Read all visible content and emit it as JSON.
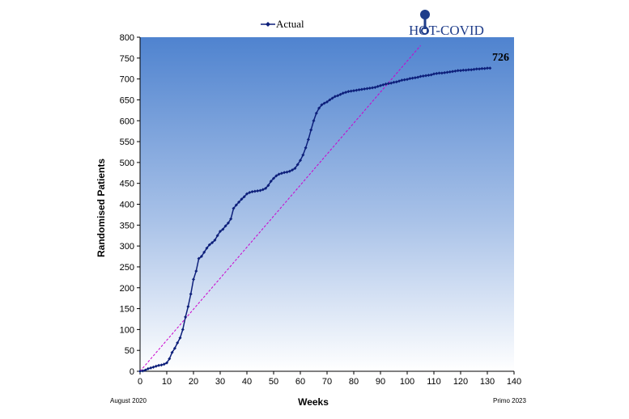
{
  "chart_data": {
    "type": "line",
    "title": "",
    "xlabel": "Weeks",
    "ylabel": "Randomised Patients",
    "xlim": [
      0,
      140
    ],
    "ylim": [
      0,
      800
    ],
    "x_ticks": [
      0,
      10,
      20,
      30,
      40,
      50,
      60,
      70,
      80,
      90,
      100,
      110,
      120,
      130,
      140
    ],
    "y_ticks": [
      0,
      50,
      100,
      150,
      200,
      250,
      300,
      350,
      400,
      450,
      500,
      550,
      600,
      650,
      700,
      750,
      800
    ],
    "legend": {
      "position": "top-center",
      "entries": [
        "Actual"
      ]
    },
    "grid": false,
    "background": "vertical gradient blue to white",
    "series": [
      {
        "name": "Actual",
        "color": "#0d1f7a",
        "marker": "diamond",
        "x": [
          0,
          1,
          2,
          3,
          4,
          5,
          6,
          7,
          8,
          9,
          10,
          11,
          12,
          13,
          14,
          15,
          16,
          17,
          18,
          19,
          20,
          21,
          22,
          23,
          24,
          25,
          26,
          27,
          28,
          29,
          30,
          31,
          32,
          33,
          34,
          35,
          36,
          37,
          38,
          39,
          40,
          41,
          42,
          43,
          44,
          45,
          46,
          47,
          48,
          49,
          50,
          51,
          52,
          53,
          54,
          55,
          56,
          57,
          58,
          59,
          60,
          61,
          62,
          63,
          64,
          65,
          66,
          67,
          68,
          69,
          70,
          71,
          72,
          73,
          74,
          75,
          76,
          77,
          78,
          79,
          80,
          81,
          82,
          83,
          84,
          85,
          86,
          87,
          88,
          89,
          90,
          91,
          92,
          93,
          94,
          95,
          96,
          97,
          98,
          99,
          100,
          101,
          102,
          103,
          104,
          105,
          106,
          107,
          108,
          109,
          110,
          111,
          112,
          113,
          114,
          115,
          116,
          117,
          118,
          119,
          120,
          121,
          122,
          123,
          124,
          125,
          126,
          127,
          128,
          129,
          130,
          131
        ],
        "y": [
          0,
          1,
          3,
          6,
          8,
          10,
          12,
          14,
          15,
          17,
          20,
          30,
          45,
          55,
          68,
          80,
          100,
          130,
          155,
          185,
          220,
          240,
          270,
          275,
          285,
          295,
          303,
          308,
          314,
          325,
          335,
          340,
          348,
          355,
          365,
          390,
          398,
          405,
          412,
          418,
          425,
          428,
          430,
          431,
          432,
          433,
          435,
          438,
          445,
          455,
          462,
          468,
          472,
          474,
          476,
          477,
          479,
          482,
          486,
          495,
          505,
          518,
          535,
          555,
          578,
          600,
          618,
          630,
          638,
          642,
          645,
          650,
          654,
          658,
          660,
          663,
          666,
          668,
          670,
          671,
          672,
          673,
          674,
          675,
          676,
          677,
          678,
          679,
          680,
          682,
          684,
          686,
          688,
          689,
          690,
          692,
          693,
          695,
          697,
          698,
          699,
          701,
          702,
          703,
          704,
          706,
          707,
          708,
          709,
          710,
          712,
          713,
          714,
          714,
          715,
          716,
          717,
          718,
          719,
          720,
          720,
          721,
          721,
          722,
          722,
          723,
          724,
          724,
          725,
          725,
          726,
          726
        ]
      },
      {
        "name": "",
        "color": "#cc00cc",
        "style": "dashed",
        "x": [
          0,
          105
        ],
        "y": [
          0,
          780
        ]
      }
    ],
    "annotations": [
      {
        "text": "726",
        "x": 131,
        "y": 726
      }
    ]
  },
  "legend_label": "Actual",
  "logo_text": "HOT-COVID",
  "footer_left": "August 2020",
  "footer_right": "Primo 2023",
  "end_label": "726",
  "colors": {
    "actual_line": "#0d1f7a",
    "target_line": "#cc00cc",
    "gradient_top": "#4f83cf",
    "gradient_bottom": "#ffffff",
    "logo": "#1f3d8a"
  },
  "icons": {
    "logo_mark": "key-shape-icon"
  }
}
